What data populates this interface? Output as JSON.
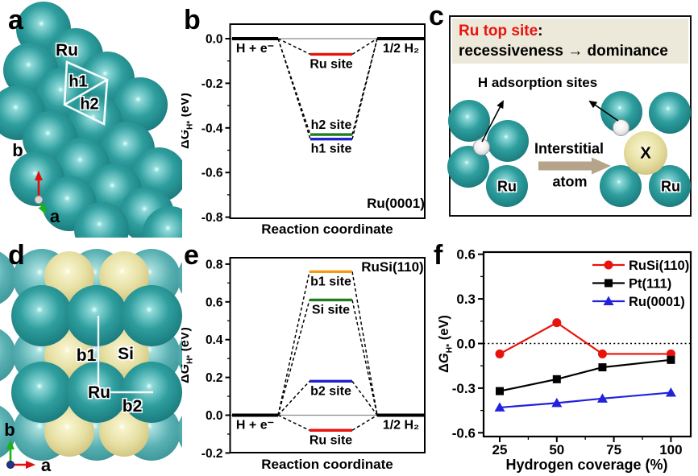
{
  "colors": {
    "ruthenium_teal": "#1f8c8f",
    "back_layer_teal": "#58b0b2",
    "silicon_yellow": "#ded58f",
    "hydrogen_white": "#f1f1f1",
    "accent_red": "#e8130c",
    "accent_green": "#1e7d1e",
    "accent_blue": "#2222cc",
    "accent_orange": "#f59a11",
    "tan_arrow": "#b5a489",
    "header_beige": "#ece8da"
  },
  "panels": {
    "a": {
      "label": "a",
      "ru": "Ru",
      "h1": "h1",
      "h2": "h2",
      "axis_up": "b",
      "axis_right": "a"
    },
    "b": {
      "label": "b"
    },
    "c": {
      "label": "c",
      "title": "Ru top site",
      "title_colon": ":",
      "subtitle": "recessiveness → dominance",
      "annotation": "H adsorption sites",
      "arrow_word1": "Interstitial",
      "arrow_word2": "atom",
      "ru_left": "Ru",
      "x_atom": "X",
      "ru_right": "Ru"
    },
    "d": {
      "label": "d",
      "b1": "b1",
      "si": "Si",
      "ru": "Ru",
      "b2": "b2",
      "axis_up": "b",
      "axis_right": "a"
    },
    "e": {
      "label": "e"
    },
    "f": {
      "label": "f"
    }
  },
  "chart_data": [
    {
      "panel": "b",
      "type": "energy_level_diagram",
      "title": "Ru(0001)",
      "xlabel": "Reaction coordinate",
      "ylabel": "ΔG_H* (eV)",
      "ylim": [
        -0.85,
        0.07
      ],
      "yticks": [
        "0.0",
        "-0.2",
        "-0.4",
        "-0.6",
        "-0.8"
      ],
      "ytick_values": [
        0.0,
        -0.2,
        -0.4,
        -0.6,
        -0.8
      ],
      "minor_tick_step": 0.1,
      "zero_line": true,
      "connectors": "dashed",
      "levels": [
        {
          "label": "H + e⁻",
          "value": 0.0,
          "color": "#000000",
          "pos": "start",
          "side": "below"
        },
        {
          "label": "Ru site",
          "value": -0.07,
          "color": "#e8130c",
          "pos": "mid",
          "side": "below"
        },
        {
          "label": "h2 site",
          "value": -0.43,
          "color": "#1e7d1e",
          "pos": "mid",
          "side": "above"
        },
        {
          "label": "h1 site",
          "value": -0.45,
          "color": "#2222cc",
          "pos": "mid",
          "side": "below"
        },
        {
          "label": "1/2 H₂",
          "value": 0.0,
          "color": "#000000",
          "pos": "end",
          "side": "below"
        }
      ]
    },
    {
      "panel": "e",
      "type": "energy_level_diagram",
      "title": "RuSi(110)",
      "xlabel": "Reaction coordinate",
      "ylabel": "ΔG_H* (eV)",
      "ylim": [
        -0.2,
        0.84
      ],
      "yticks": [
        "0.8",
        "0.6",
        "0.4",
        "0.2",
        "0.0",
        "-0.2"
      ],
      "ytick_values": [
        0.8,
        0.6,
        0.4,
        0.2,
        0.0,
        -0.2
      ],
      "minor_tick_step": 0.1,
      "zero_line": true,
      "connectors": "dashed",
      "levels": [
        {
          "label": "b1 site",
          "value": 0.76,
          "color": "#f59a11",
          "pos": "mid",
          "side": "below"
        },
        {
          "label": "Si site",
          "value": 0.61,
          "color": "#1e7d1e",
          "pos": "mid",
          "side": "below"
        },
        {
          "label": "b2 site",
          "value": 0.18,
          "color": "#2222cc",
          "pos": "mid",
          "side": "below"
        },
        {
          "label": "H + e⁻",
          "value": 0.0,
          "color": "#000000",
          "pos": "start",
          "side": "below"
        },
        {
          "label": "Ru site",
          "value": -0.08,
          "color": "#e8130c",
          "pos": "mid",
          "side": "below"
        },
        {
          "label": "1/2 H₂",
          "value": 0.0,
          "color": "#000000",
          "pos": "end",
          "side": "below"
        }
      ]
    },
    {
      "panel": "f",
      "type": "line",
      "xlabel": "Hydrogen coverage (%)",
      "ylabel": "ΔG_H* (eV)",
      "xlim": [
        17,
        106
      ],
      "ylim": [
        -0.6,
        0.6
      ],
      "xticks": [
        25,
        50,
        75,
        100
      ],
      "yticks": [
        "0.6",
        "0.3",
        "0.0",
        "-0.3",
        "-0.6"
      ],
      "ytick_values": [
        0.6,
        0.3,
        0.0,
        -0.3,
        -0.6
      ],
      "zero_line": "dotted",
      "legend_position": "top-right",
      "series": [
        {
          "name": "RuSi(110)",
          "color": "#e8130c",
          "marker": "circle",
          "x": [
            25,
            50,
            70,
            100
          ],
          "y": [
            -0.07,
            0.14,
            -0.07,
            -0.07
          ]
        },
        {
          "name": "Pt(111)",
          "color": "#000000",
          "marker": "square",
          "x": [
            25,
            50,
            70,
            100
          ],
          "y": [
            -0.32,
            -0.24,
            -0.16,
            -0.11
          ]
        },
        {
          "name": "Ru(0001)",
          "color": "#2222dd",
          "marker": "triangle",
          "x": [
            25,
            50,
            70,
            100
          ],
          "y": [
            -0.43,
            -0.4,
            -0.37,
            -0.33
          ]
        }
      ]
    }
  ]
}
